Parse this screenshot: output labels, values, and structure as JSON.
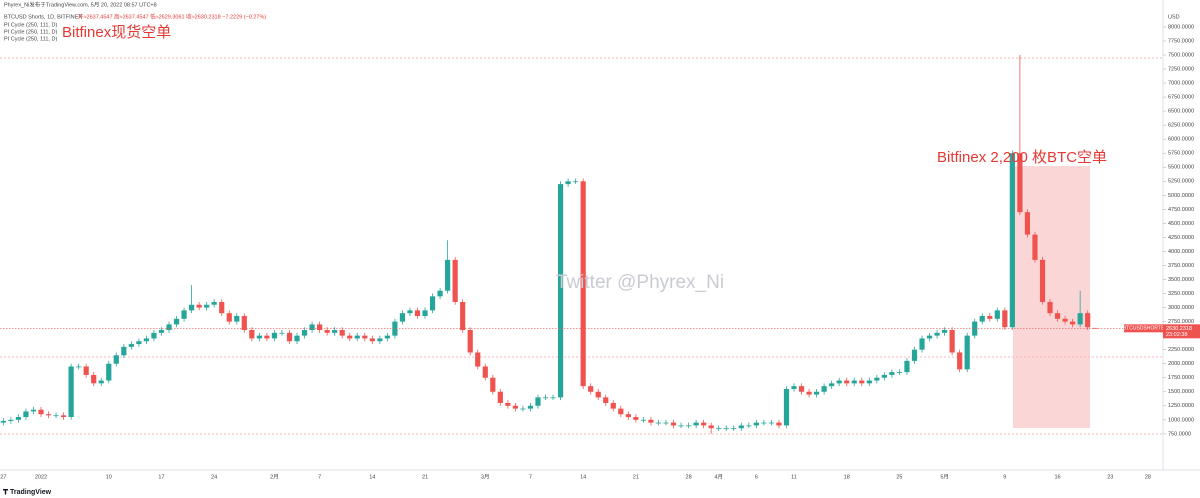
{
  "header": "Phyrex_Ni发布于TradingView.com, 5月 20, 2022 08:57 UTC+8",
  "footer": "TradingView",
  "chart_data": {
    "type": "candlestick",
    "title": "BTCUSD Shorts, 1D, BITFINEX",
    "legend_values": "开≈2637.4547 高≈2637.4547 低≈2629.3061 收≈2630.2318 −7.2229 (−0.27%)",
    "indicators": [
      "PI Cycle (250, 111, D)",
      "PI Cycle (250, 111, D)",
      "PI Cycle (250, 111, D)"
    ],
    "annotations": [
      "Bitfinex现货空单",
      "Bitfinex 2,200 枚BTC空单"
    ],
    "watermark": "Twitter @Phyrex_Ni",
    "y_axis_unit": "USD",
    "symbol_label": "BTCUSDSHORTS",
    "last_price_label": "2630.2318",
    "countdown": "23:02:38",
    "up_color": "#26a69a",
    "down_color": "#ef5350",
    "categories": [
      "27",
      null,
      null,
      null,
      null,
      "2022",
      null,
      null,
      null,
      null,
      null,
      null,
      null,
      null,
      "10",
      null,
      null,
      null,
      null,
      null,
      null,
      "17",
      null,
      null,
      null,
      null,
      null,
      null,
      "24",
      null,
      null,
      null,
      null,
      null,
      null,
      null,
      "2月",
      null,
      null,
      null,
      null,
      null,
      "7",
      null,
      null,
      null,
      null,
      null,
      null,
      "14",
      null,
      null,
      null,
      null,
      null,
      null,
      "21",
      null,
      null,
      null,
      null,
      null,
      null,
      null,
      "3月",
      null,
      null,
      null,
      null,
      null,
      "7",
      null,
      null,
      null,
      null,
      null,
      null,
      "14",
      null,
      null,
      null,
      null,
      null,
      null,
      "21",
      null,
      null,
      null,
      null,
      null,
      null,
      "28",
      null,
      null,
      null,
      "4月",
      null,
      null,
      null,
      null,
      "6",
      null,
      null,
      null,
      null,
      "11",
      null,
      null,
      null,
      null,
      null,
      null,
      "18",
      null,
      null,
      null,
      null,
      null,
      null,
      "25",
      null,
      null,
      null,
      null,
      null,
      "5月",
      null,
      null,
      null,
      null,
      null,
      null,
      null,
      "9",
      null,
      null,
      null,
      null,
      null,
      null,
      "16",
      null,
      null,
      null,
      null,
      null,
      null,
      "23",
      null,
      null,
      null,
      null,
      "28"
    ],
    "open": [
      950,
      980,
      1000,
      1050,
      1150,
      1180,
      1100,
      1080,
      1080,
      1050,
      1950,
      1950,
      1800,
      1650,
      1700,
      2000,
      2150,
      2300,
      2350,
      2400,
      2450,
      2550,
      2600,
      2700,
      2800,
      2950,
      3050,
      3000,
      3050,
      3100,
      2900,
      2750,
      2850,
      2600,
      2450,
      2500,
      2450,
      2550,
      2550,
      2400,
      2500,
      2600,
      2700,
      2600,
      2550,
      2600,
      2500,
      2450,
      2500,
      2450,
      2400,
      2450,
      2500,
      2750,
      2900,
      2950,
      2850,
      2950,
      3200,
      3300,
      3850,
      3100,
      2600,
      2200,
      1950,
      1750,
      1500,
      1300,
      1250,
      1200,
      1200,
      1250,
      1400,
      1400,
      1400,
      5200,
      5250,
      5250,
      1600,
      1500,
      1400,
      1300,
      1200,
      1100,
      1050,
      1000,
      1000,
      950,
      950,
      950,
      900,
      900,
      900,
      950,
      900,
      850,
      850,
      850,
      850,
      900,
      900,
      950,
      950,
      950,
      900,
      1550,
      1600,
      1500,
      1450,
      1500,
      1600,
      1650,
      1700,
      1650,
      1700,
      1650,
      1700,
      1750,
      1800,
      1850,
      1850,
      2050,
      2250,
      2450,
      2500,
      2550,
      2600,
      2200,
      1900,
      2500,
      2750,
      2850,
      2800,
      2950,
      2650,
      5750,
      4700,
      4300,
      3850,
      3100,
      2900,
      2800,
      2750,
      2700,
      2900,
      2637.4547,
      null,
      null,
      null,
      null,
      null,
      null,
      null
    ],
    "high": [
      1030,
      1050,
      1100,
      1200,
      1230,
      1230,
      1150,
      1130,
      1130,
      2000,
      2000,
      2000,
      1850,
      1750,
      2050,
      2200,
      2350,
      2400,
      2450,
      2500,
      2600,
      2650,
      2750,
      2850,
      3000,
      3400,
      3100,
      3100,
      3150,
      3150,
      2950,
      2900,
      2900,
      2650,
      2550,
      2550,
      2600,
      2600,
      2600,
      2550,
      2650,
      2750,
      2750,
      2650,
      2650,
      2650,
      2550,
      2550,
      2550,
      2500,
      2500,
      2550,
      2800,
      2950,
      3000,
      3000,
      3000,
      3250,
      3350,
      4200,
      3900,
      3150,
      2650,
      2250,
      2000,
      1800,
      1550,
      1350,
      1300,
      1250,
      1300,
      1450,
      1450,
      1450,
      5250,
      5300,
      5300,
      5300,
      1650,
      1550,
      1450,
      1350,
      1250,
      1150,
      1100,
      1050,
      1050,
      1000,
      1000,
      1000,
      950,
      950,
      1000,
      1000,
      950,
      900,
      900,
      900,
      950,
      950,
      1000,
      1000,
      1000,
      1000,
      1600,
      1650,
      1650,
      1550,
      1550,
      1650,
      1700,
      1750,
      1750,
      1750,
      1750,
      1750,
      1800,
      1850,
      1900,
      1900,
      2100,
      2300,
      2500,
      2550,
      2600,
      2650,
      2650,
      2250,
      2550,
      2800,
      2900,
      2900,
      3000,
      3000,
      5800,
      7500,
      4750,
      4350,
      3900,
      3150,
      2950,
      2850,
      2800,
      3300,
      2950,
      2637.4547,
      null,
      null,
      null,
      null,
      null,
      null,
      null
    ],
    "low": [
      900,
      930,
      950,
      1000,
      1100,
      1050,
      1030,
      1030,
      1000,
      1000,
      1900,
      1750,
      1600,
      1600,
      1650,
      1950,
      2100,
      2250,
      2300,
      2350,
      2400,
      2500,
      2550,
      2650,
      2750,
      2900,
      2950,
      2950,
      3000,
      2850,
      2700,
      2700,
      2550,
      2400,
      2400,
      2400,
      2400,
      2500,
      2350,
      2350,
      2450,
      2550,
      2550,
      2500,
      2500,
      2450,
      2400,
      2400,
      2400,
      2350,
      2350,
      2400,
      2450,
      2700,
      2850,
      2800,
      2800,
      2900,
      3150,
      3250,
      3050,
      2550,
      2150,
      1900,
      1700,
      1450,
      1250,
      1200,
      1150,
      1150,
      1150,
      1200,
      1350,
      1350,
      1350,
      5150,
      5200,
      1550,
      1450,
      1350,
      1250,
      1150,
      1050,
      1000,
      950,
      950,
      900,
      900,
      900,
      850,
      850,
      850,
      850,
      850,
      750,
      800,
      800,
      800,
      800,
      850,
      850,
      900,
      900,
      850,
      850,
      1500,
      1450,
      1400,
      1400,
      1450,
      1550,
      1600,
      1600,
      1600,
      1600,
      1600,
      1650,
      1700,
      1750,
      1800,
      1800,
      2000,
      2200,
      2400,
      2450,
      2500,
      2150,
      1850,
      1850,
      2450,
      2700,
      2750,
      2750,
      2600,
      2600,
      4650,
      4250,
      3800,
      3050,
      2850,
      2750,
      2700,
      2650,
      2650,
      2600,
      2629.3061,
      null,
      null,
      null,
      null,
      null,
      null,
      null
    ],
    "close": [
      980,
      1000,
      1050,
      1150,
      1180,
      1100,
      1080,
      1080,
      1050,
      1950,
      1950,
      1800,
      1650,
      1700,
      2000,
      2150,
      2300,
      2350,
      2400,
      2450,
      2550,
      2600,
      2700,
      2800,
      2950,
      3050,
      3000,
      3050,
      3100,
      2900,
      2750,
      2850,
      2600,
      2450,
      2500,
      2450,
      2550,
      2550,
      2400,
      2500,
      2600,
      2700,
      2600,
      2550,
      2600,
      2500,
      2450,
      2500,
      2450,
      2400,
      2450,
      2500,
      2750,
      2900,
      2950,
      2850,
      2950,
      3200,
      3300,
      3850,
      3100,
      2600,
      2200,
      1950,
      1750,
      1500,
      1300,
      1250,
      1200,
      1200,
      1250,
      1400,
      1400,
      1400,
      5200,
      5250,
      5250,
      1600,
      1500,
      1400,
      1300,
      1200,
      1100,
      1050,
      1000,
      1000,
      950,
      950,
      950,
      900,
      900,
      900,
      950,
      900,
      850,
      850,
      850,
      850,
      900,
      900,
      950,
      950,
      950,
      900,
      1550,
      1600,
      1500,
      1450,
      1500,
      1600,
      1650,
      1700,
      1650,
      1700,
      1650,
      1700,
      1750,
      1800,
      1850,
      1850,
      2050,
      2250,
      2450,
      2500,
      2550,
      2600,
      2200,
      1900,
      2500,
      2750,
      2850,
      2800,
      2950,
      2650,
      5750,
      4700,
      4300,
      3850,
      3100,
      2900,
      2800,
      2750,
      2700,
      2900,
      2650,
      2630.2318,
      null,
      null,
      null,
      null,
      null,
      null,
      null
    ],
    "ylim": [
      106,
      8480
    ],
    "yticks": [
      {
        "value": 750,
        "label": "750.0000"
      },
      {
        "value": 1000,
        "label": "1000.0000"
      },
      {
        "value": 1250,
        "label": "1250.0000"
      },
      {
        "value": 1500,
        "label": "1500.0000"
      },
      {
        "value": 1750,
        "label": "1750.0000"
      },
      {
        "value": 2000,
        "label": "2000.0000"
      },
      {
        "value": 2250,
        "label": "2250.0000"
      },
      {
        "value": 2500,
        "label": "2500.0000"
      },
      {
        "value": 2750,
        "label": "2750.0000"
      },
      {
        "value": 3000,
        "label": "3000.0000"
      },
      {
        "value": 3250,
        "label": "3250.0000"
      },
      {
        "value": 3500,
        "label": "3500.0000"
      },
      {
        "value": 3750,
        "label": "3750.0000"
      },
      {
        "value": 4000,
        "label": "4000.0000"
      },
      {
        "value": 4250,
        "label": "4250.0000"
      },
      {
        "value": 4500,
        "label": "4500.0000"
      },
      {
        "value": 4750,
        "label": "4750.0000"
      },
      {
        "value": 5000,
        "label": "5000.0000"
      },
      {
        "value": 5250,
        "label": "5250.0000"
      },
      {
        "value": 5500,
        "label": "5500.0000"
      },
      {
        "value": 5750,
        "label": "5750.0000"
      },
      {
        "value": 6000,
        "label": "6000.0000"
      },
      {
        "value": 6250,
        "label": "6250.0000"
      },
      {
        "value": 6500,
        "label": "6500.0000"
      },
      {
        "value": 6750,
        "label": "6750.0000"
      },
      {
        "value": 7000,
        "label": "7000.0000"
      },
      {
        "value": 7250,
        "label": "7250.0000"
      },
      {
        "value": 7500,
        "label": "7500.0000"
      },
      {
        "value": 7750,
        "label": "7750.0000"
      },
      {
        "value": 8000,
        "label": "8000.0000"
      }
    ]
  }
}
